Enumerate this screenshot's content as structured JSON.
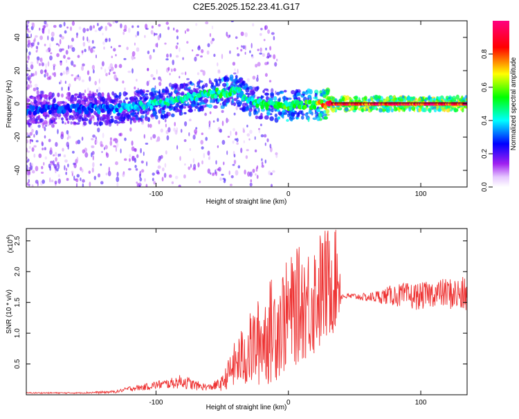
{
  "figure": {
    "title": "C2E5.2025.152.23.41.G17"
  },
  "chart_data": [
    {
      "type": "heatmap",
      "xlabel": "Height of straight line (km)",
      "ylabel": "Frequency (Hz)",
      "xlim": [
        -198,
        135
      ],
      "ylim": [
        -50,
        50
      ],
      "x_ticks": [
        -100,
        0,
        100
      ],
      "y_ticks": [
        -40,
        -20,
        0,
        20,
        40
      ],
      "grid": false,
      "colorbar": {
        "label": "Normalized spectral amplitude",
        "range": [
          0.0,
          1.0
        ],
        "ticks": [
          0.0,
          0.2,
          0.4,
          0.6,
          0.8
        ],
        "colors": [
          "#ffffff",
          "#a020f0",
          "#0000ff",
          "#00ffff",
          "#00ff00",
          "#ffff00",
          "#ff0000",
          "#ff0080"
        ]
      },
      "ridge": {
        "x": [
          -198,
          -180,
          -160,
          -140,
          -120,
          -100,
          -80,
          -60,
          -45,
          -38,
          -30,
          -20,
          -10,
          0,
          10,
          20,
          32,
          40,
          60,
          80,
          100,
          120,
          135
        ],
        "y": [
          -4,
          -3,
          -3,
          -3,
          -2,
          0,
          3,
          6,
          7,
          8,
          2,
          0,
          -1,
          -1,
          0,
          -1,
          0,
          0,
          0,
          0,
          0,
          0,
          0
        ],
        "amplitude": [
          0.3,
          0.3,
          0.32,
          0.35,
          0.4,
          0.45,
          0.45,
          0.5,
          0.55,
          0.45,
          0.45,
          0.5,
          0.55,
          0.55,
          0.55,
          0.6,
          0.95,
          0.95,
          0.95,
          0.95,
          0.95,
          0.95,
          0.95
        ]
      }
    },
    {
      "type": "line",
      "xlabel": "Height of straight line (km)",
      "ylabel": "SNR (10 * v/v)",
      "y_multiplier": "(x10",
      "y_multiplier_exp": "4",
      "xlim": [
        -198,
        135
      ],
      "ylim": [
        0,
        2.7
      ],
      "x_ticks": [
        -100,
        0,
        100
      ],
      "y_ticks": [
        0.5,
        1.0,
        1.5,
        2.0,
        2.5
      ],
      "y_tick_labels": [
        "0.5",
        "1.0",
        "1.5",
        "2.0",
        "2.5"
      ],
      "grid": false,
      "series": [
        {
          "color": "#ee3333",
          "x": [
            -198,
            -180,
            -160,
            -140,
            -130,
            -120,
            -110,
            -100,
            -90,
            -80,
            -70,
            -60,
            -50,
            -45,
            -40,
            -35,
            -30,
            -25,
            -20,
            -15,
            -10,
            -5,
            0,
            5,
            10,
            15,
            20,
            25,
            30,
            35,
            38,
            40,
            45,
            50,
            60,
            70,
            80,
            90,
            100,
            110,
            120,
            130,
            135
          ],
          "y": [
            0.03,
            0.03,
            0.03,
            0.04,
            0.05,
            0.1,
            0.12,
            0.16,
            0.18,
            0.22,
            0.15,
            0.12,
            0.18,
            0.35,
            0.5,
            0.6,
            0.7,
            0.8,
            0.9,
            1.0,
            1.1,
            1.2,
            1.3,
            1.4,
            1.5,
            1.5,
            1.6,
            1.7,
            1.8,
            1.9,
            1.95,
            1.6,
            1.6,
            1.6,
            1.58,
            1.6,
            1.62,
            1.6,
            1.6,
            1.65,
            1.65,
            1.62,
            1.6
          ],
          "noise": [
            0.01,
            0.01,
            0.01,
            0.02,
            0.02,
            0.04,
            0.05,
            0.07,
            0.08,
            0.12,
            0.08,
            0.05,
            0.12,
            0.25,
            0.4,
            0.5,
            0.6,
            0.7,
            0.75,
            0.85,
            0.9,
            0.9,
            0.9,
            0.95,
            0.95,
            0.95,
            1.0,
            1.0,
            0.95,
            0.9,
            0.8,
            0.05,
            0.05,
            0.05,
            0.07,
            0.12,
            0.18,
            0.22,
            0.22,
            0.22,
            0.25,
            0.3,
            0.3
          ]
        }
      ]
    }
  ]
}
